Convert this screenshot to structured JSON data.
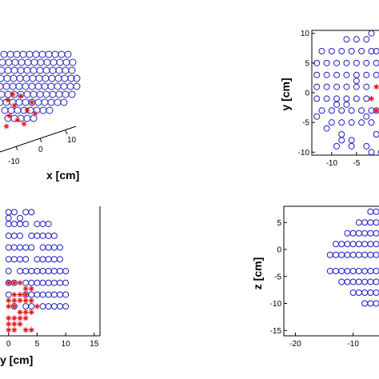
{
  "colors": {
    "electrode": "#1f1fbf",
    "marker": "#e01010",
    "axis": "#000000"
  },
  "chart_data": [
    {
      "type": "scatter",
      "panel": "top-left",
      "xlabel": "x [cm]",
      "xticks": [
        "-10",
        "0",
        "10"
      ],
      "note": "3D view, cropped"
    },
    {
      "type": "scatter",
      "panel": "top-right",
      "ylabel": "y [cm]",
      "xticks": [
        "-10",
        "-5"
      ],
      "yticks": [
        "10",
        "5",
        "0",
        "-5",
        "-10"
      ],
      "xlim": [
        -14,
        0.5
      ],
      "ylim": [
        -10.5,
        10.5
      ],
      "series": [
        {
          "marker": "circle",
          "x": [
            -7,
            -5,
            -3,
            -12,
            -10,
            -8,
            -6,
            -4,
            -2,
            -1,
            -13,
            -11,
            -9,
            -7,
            -5,
            -3,
            -1,
            -13,
            -11,
            -9,
            -7,
            -5,
            -3,
            -1,
            -13,
            -11,
            -9,
            -7,
            -5,
            -3,
            -13,
            -11,
            -9,
            -7,
            -5,
            -3,
            -12,
            -10,
            -8,
            -6,
            -4,
            -2,
            -10,
            -8,
            -6,
            -4,
            -2,
            -8,
            -8,
            -6,
            -1,
            -13,
            -11,
            -9,
            -7,
            -3,
            -1,
            -9,
            -6,
            -3,
            -2,
            -2,
            -5,
            0
          ],
          "y": [
            9,
            9,
            9,
            7,
            7,
            7,
            7,
            7,
            7,
            7,
            5,
            5,
            5,
            5,
            5,
            5,
            5,
            3,
            3,
            3,
            3,
            3,
            3,
            3,
            1,
            1,
            1,
            1,
            1,
            1,
            -1,
            -1,
            -1,
            -1,
            -1,
            -1,
            -3,
            -3,
            -3,
            -3,
            -3,
            -3,
            -5,
            -5,
            -5,
            -5,
            -5,
            -7,
            -8,
            -8,
            -7,
            -4,
            -6,
            -2,
            -2,
            -4,
            -3,
            -9,
            -9,
            -9,
            -10,
            10,
            2,
            -10
          ]
        },
        {
          "marker": "star",
          "x": [
            -1,
            -2,
            -1
          ],
          "y": [
            1,
            -1,
            -3
          ]
        }
      ]
    },
    {
      "type": "scatter",
      "panel": "bottom-left",
      "xlabel": "y [cm]",
      "xticks": [
        "0",
        "5",
        "10",
        "15"
      ],
      "xlim": [
        -1.5,
        16
      ],
      "ylim": [
        -14,
        8
      ],
      "series": [
        {
          "marker": "circle",
          "x": [
            0,
            1,
            3,
            4,
            0,
            1,
            2,
            3,
            5,
            6,
            7,
            0,
            1,
            2,
            4,
            5,
            6,
            7,
            8,
            0,
            1,
            2,
            3,
            4,
            6,
            7,
            8,
            9,
            0,
            1,
            2,
            3,
            5,
            6,
            7,
            8,
            9,
            0,
            2,
            3,
            4,
            5,
            6,
            7,
            8,
            9,
            10,
            0,
            1,
            3,
            4,
            5,
            6,
            7,
            8,
            9,
            10,
            0,
            3,
            4,
            5,
            6,
            7,
            8,
            9,
            10,
            1,
            3,
            4,
            6,
            7,
            8,
            9,
            10,
            0,
            2
          ],
          "y": [
            7,
            7,
            7,
            7,
            5,
            5,
            5,
            5,
            5,
            5,
            5,
            3,
            3,
            3,
            3,
            3,
            3,
            3,
            3,
            1,
            1,
            1,
            1,
            1,
            1,
            1,
            1,
            1,
            -1,
            -1,
            -1,
            -1,
            -1,
            -1,
            -1,
            -1,
            -1,
            -3,
            -3,
            -3,
            -3,
            -3,
            -3,
            -3,
            -3,
            -3,
            -3,
            -5,
            -5,
            -5,
            -5,
            -5,
            -5,
            -5,
            -5,
            -5,
            -5,
            -7,
            -7,
            -7,
            -7,
            -7,
            -7,
            -7,
            -7,
            -7,
            -9,
            -9,
            -9,
            -9,
            -9,
            -9,
            -9,
            -9,
            6,
            6
          ]
        },
        {
          "marker": "star",
          "x": [
            0,
            1,
            2,
            3,
            4,
            1,
            2,
            3,
            0,
            1,
            2,
            3,
            4,
            5,
            0,
            1,
            2,
            3,
            4,
            0,
            1,
            2,
            3,
            0,
            1,
            2,
            0,
            1,
            3,
            4
          ],
          "y": [
            -5,
            -5,
            -5,
            -6,
            -6,
            -7,
            -7,
            -7,
            -8,
            -8,
            -8,
            -8,
            -8,
            -9,
            -9,
            -9,
            -10,
            -10,
            -10,
            -11,
            -11,
            -11,
            -11,
            -12,
            -12,
            -12,
            -13,
            -13,
            -13,
            -13
          ]
        }
      ]
    },
    {
      "type": "scatter",
      "panel": "bottom-right",
      "ylabel": "z [cm]",
      "xticks": [
        "-20",
        "-10"
      ],
      "yticks": [
        "5",
        "0",
        "-5",
        "-10",
        "-15"
      ],
      "xlim": [
        -22,
        -4
      ],
      "ylim": [
        -16,
        8
      ],
      "series": [
        {
          "marker": "circle",
          "x": [
            -7,
            -6,
            -5,
            -9,
            -8,
            -7,
            -6,
            -5,
            -4,
            -11,
            -10,
            -9,
            -8,
            -7,
            -6,
            -5,
            -13,
            -12,
            -11,
            -10,
            -9,
            -8,
            -7,
            -6,
            -5,
            -14,
            -13,
            -12,
            -11,
            -10,
            -9,
            -8,
            -7,
            -6,
            -5,
            -14,
            -13,
            -12,
            -11,
            -10,
            -9,
            -8,
            -7,
            -6,
            -5,
            -12,
            -11,
            -10,
            -9,
            -8,
            -7,
            -6,
            -5,
            -10,
            -9,
            -8,
            -7,
            -6,
            -5,
            -8,
            -7,
            -6,
            -5
          ],
          "y": [
            7,
            7,
            7,
            5,
            5,
            5,
            5,
            5,
            5,
            3,
            3,
            3,
            3,
            3,
            3,
            3,
            1,
            1,
            1,
            1,
            1,
            1,
            1,
            1,
            1,
            -1,
            -1,
            -1,
            -1,
            -1,
            -1,
            -1,
            -1,
            -1,
            -1,
            -4,
            -4,
            -4,
            -4,
            -4,
            -4,
            -4,
            -4,
            -4,
            -4,
            -6,
            -6,
            -6,
            -6,
            -6,
            -6,
            -6,
            -6,
            -8,
            -8,
            -8,
            -8,
            -8,
            -8,
            -10,
            -10,
            -10,
            -10
          ]
        },
        {
          "marker": "star",
          "x": [
            -5,
            -5,
            -5,
            -5,
            -4,
            -4
          ],
          "y": [
            -9,
            -11,
            -12,
            -13,
            -10,
            -14
          ]
        }
      ]
    }
  ]
}
